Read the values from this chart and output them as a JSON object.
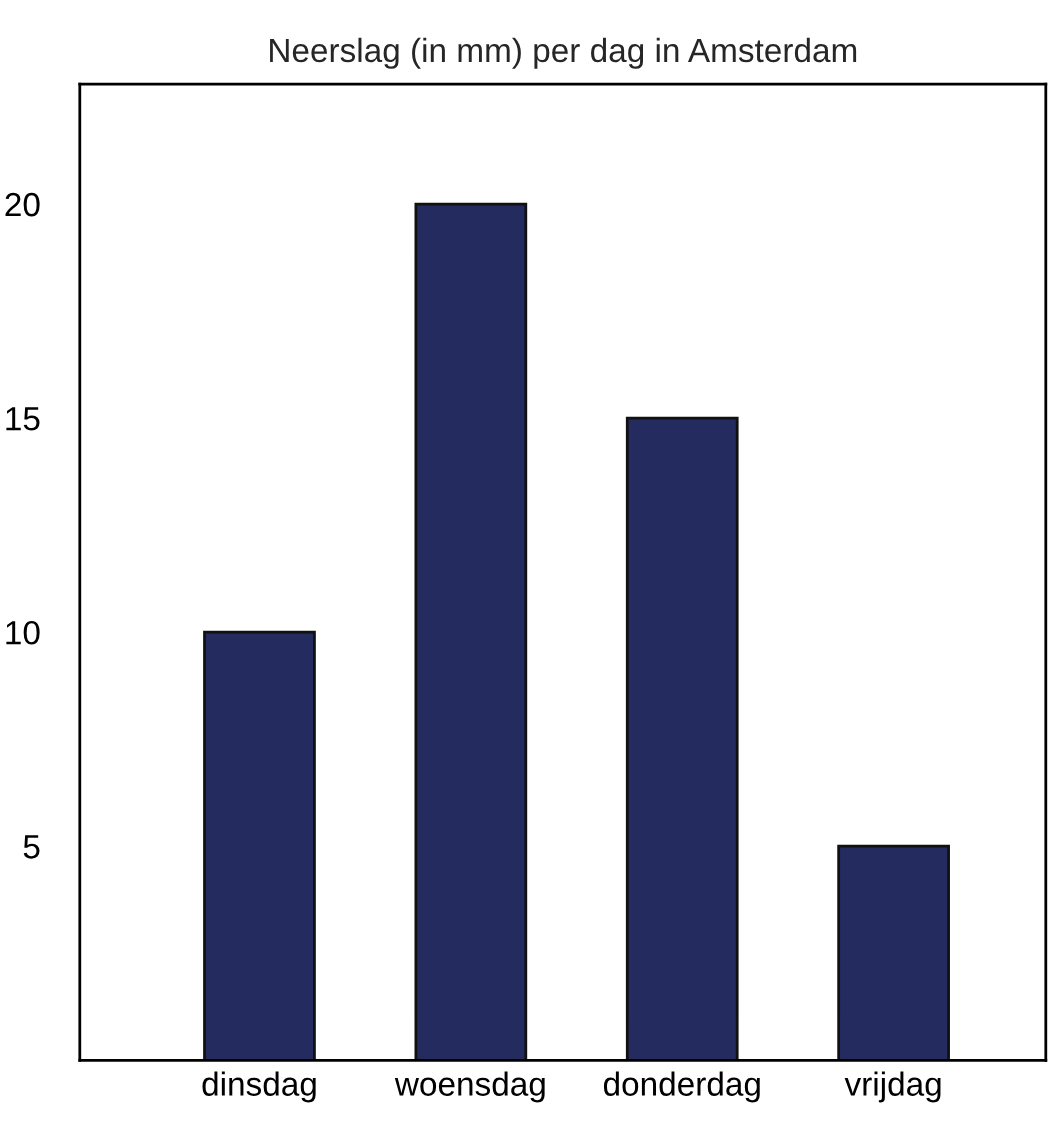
{
  "chart_data": {
    "type": "bar",
    "title": "Neerslag (in mm) per dag in Amsterdam",
    "categories": [
      "dinsdag",
      "woensdag",
      "donderdag",
      "vrijdag"
    ],
    "values": [
      10,
      20,
      15,
      5
    ],
    "color": "#242b5e",
    "ylim": [
      0,
      22.8
    ],
    "yticks": [
      5,
      10,
      15,
      20
    ],
    "grid": false,
    "legend": false
  }
}
